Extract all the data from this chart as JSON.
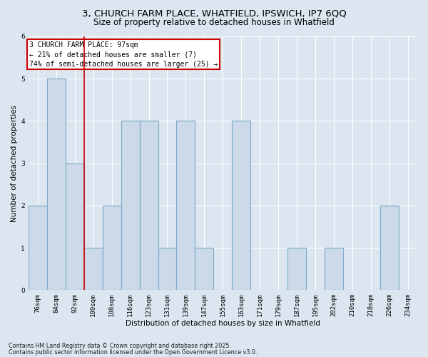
{
  "title1": "3, CHURCH FARM PLACE, WHATFIELD, IPSWICH, IP7 6QQ",
  "title2": "Size of property relative to detached houses in Whatfield",
  "xlabel": "Distribution of detached houses by size in Whatfield",
  "ylabel": "Number of detached properties",
  "categories": [
    "76sqm",
    "84sqm",
    "92sqm",
    "100sqm",
    "108sqm",
    "116sqm",
    "123sqm",
    "131sqm",
    "139sqm",
    "147sqm",
    "155sqm",
    "163sqm",
    "171sqm",
    "179sqm",
    "187sqm",
    "195sqm",
    "202sqm",
    "210sqm",
    "218sqm",
    "226sqm",
    "234sqm"
  ],
  "values": [
    2,
    5,
    3,
    1,
    2,
    4,
    4,
    1,
    4,
    1,
    0,
    4,
    0,
    0,
    1,
    0,
    1,
    0,
    0,
    2,
    0
  ],
  "bar_color": "#ccd9e8",
  "bar_edge_color": "#7aaac8",
  "bar_edge_width": 0.8,
  "red_line_after_index": 2,
  "annotation_lines": [
    "3 CHURCH FARM PLACE: 97sqm",
    "← 21% of detached houses are smaller (7)",
    "74% of semi-detached houses are larger (25) →"
  ],
  "annotation_box_color": "white",
  "annotation_box_edge_color": "#cc0000",
  "red_line_color": "#cc0000",
  "ylim": [
    0,
    6
  ],
  "yticks": [
    0,
    1,
    2,
    3,
    4,
    5,
    6
  ],
  "bg_color": "#dce6f0",
  "plot_bg_color": "#dce6f0",
  "grid_color": "white",
  "footnote1": "Contains HM Land Registry data © Crown copyright and database right 2025.",
  "footnote2": "Contains public sector information licensed under the Open Government Licence v3.0.",
  "title1_fontsize": 9.5,
  "title2_fontsize": 8.5,
  "axis_label_fontsize": 7.5,
  "tick_fontsize": 6.5,
  "footnote_fontsize": 5.8,
  "annotation_fontsize": 7.0
}
